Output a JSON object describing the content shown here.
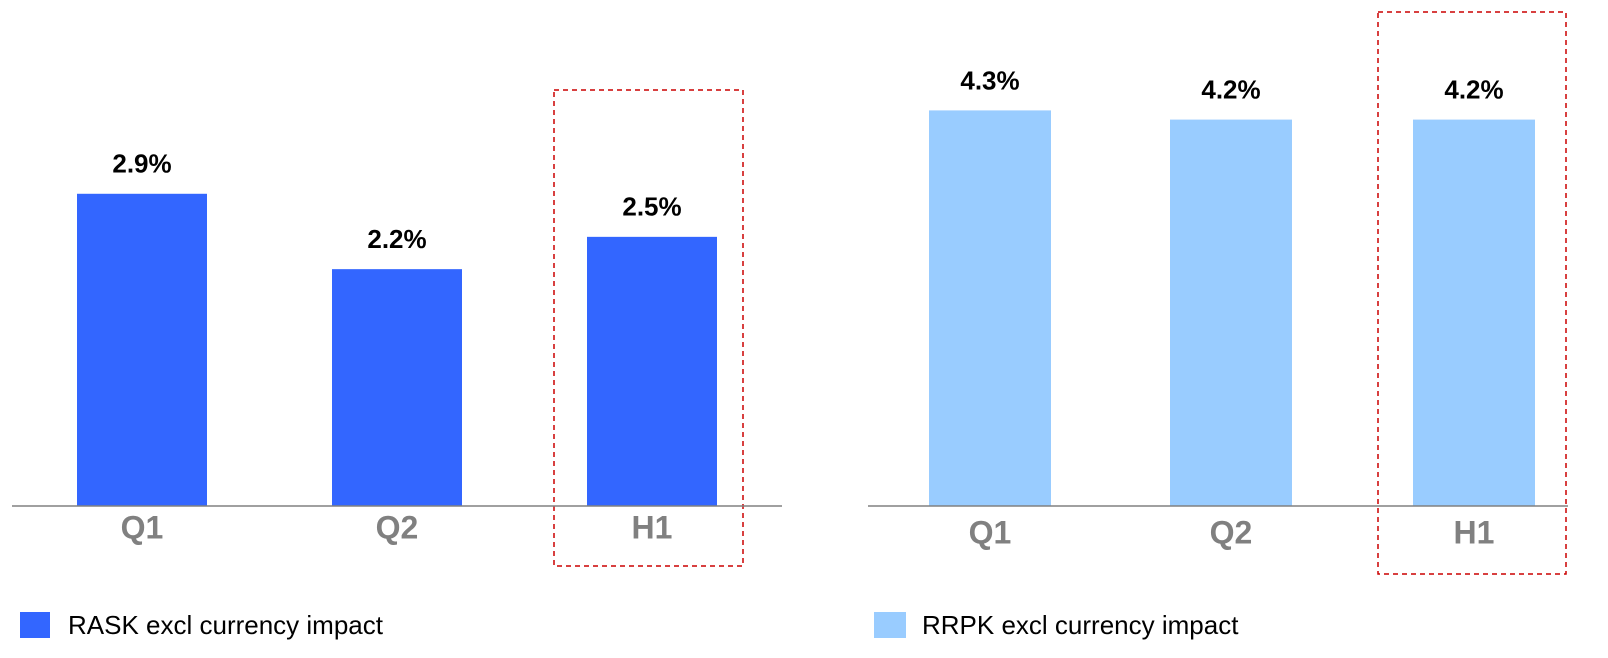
{
  "chart_data": [
    {
      "type": "bar",
      "categories": [
        "Q1",
        "Q2",
        "H1"
      ],
      "series": [
        {
          "name": "RASK excl currency impact",
          "color": "#3366ff",
          "values": [
            2.9,
            2.2,
            2.5
          ],
          "value_labels": [
            "2.9%",
            "2.2%",
            "2.5%"
          ]
        }
      ],
      "ylim": [
        0,
        4.7
      ]
    },
    {
      "type": "bar",
      "categories": [
        "Q1",
        "Q2",
        "H1"
      ],
      "series": [
        {
          "name": "RRPK excl currency impact",
          "color": "#99ccff",
          "values": [
            4.3,
            4.2,
            4.2
          ],
          "value_labels": [
            "4.3%",
            "4.2%",
            "4.2%"
          ]
        }
      ],
      "ylim": [
        0,
        5.5
      ]
    }
  ]
}
